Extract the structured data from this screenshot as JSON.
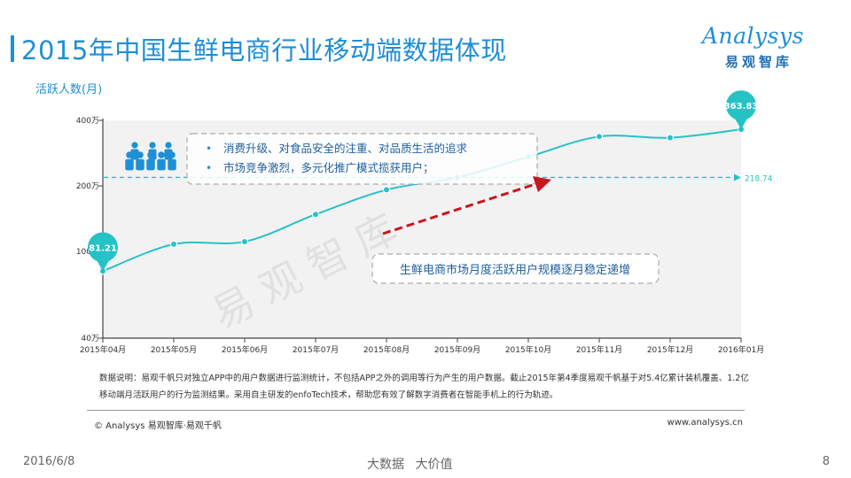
{
  "header": {
    "title": "2015年中国生鲜电商行业移动端数据体现"
  },
  "logo": {
    "text": "Analysys",
    "chinese": "易观智库"
  },
  "watermark": "易观智库",
  "chart_data": {
    "type": "line",
    "ylabel": "活跃人数(月)",
    "categories": [
      "2015年04月",
      "2015年05月",
      "2015年06月",
      "2015年07月",
      "2015年08月",
      "2015年09月",
      "2015年10月",
      "2015年11月",
      "2015年12月",
      "2016年01月"
    ],
    "values": [
      81.21,
      108,
      111,
      148,
      192,
      218.74,
      272,
      337,
      333,
      363.83
    ],
    "y_ticks": [
      {
        "value": 40,
        "label": "40万"
      },
      {
        "value": 100,
        "label": "100万"
      },
      {
        "value": 200,
        "label": "200万"
      },
      {
        "value": 400,
        "label": "400万"
      }
    ],
    "ylim": [
      40,
      400
    ],
    "y_scale": "log",
    "start_label": "81.21",
    "end_label": "363.83",
    "reference_line": {
      "value": 218.74,
      "label": "218.74"
    },
    "annotations": {
      "bullets": [
        "消费升级、对食品安全的注重、对品质生活的追求",
        "市场竞争激烈，多元化推广模式揽获用户；"
      ],
      "trend_note": "生鲜电商市场月度活跃用户规模逐月稳定递增"
    },
    "colors": {
      "line": "#25c2c6",
      "arrow": "#c8161e",
      "pin": "#25c2c6",
      "people": "#1f8fd6"
    }
  },
  "footer": {
    "note": "数据说明：易观千帆只对独立APP中的用户数据进行监测统计，不包括APP之外的调用等行为产生的用户数据。截止2015年第4季度易观千帆基于对5.4亿累计装机覆盖、1.2亿移动端月活跃用户的行为监测结果。采用自主研发的enfoTech技术，帮助您有效了解数字消费者在智能手机上的行为轨迹。",
    "copyright": "© Analysys 易观智库·易观千帆",
    "website": "www.analysys.cn",
    "date": "2016/6/8",
    "slogan": "大数据 大价值",
    "page": "8"
  }
}
